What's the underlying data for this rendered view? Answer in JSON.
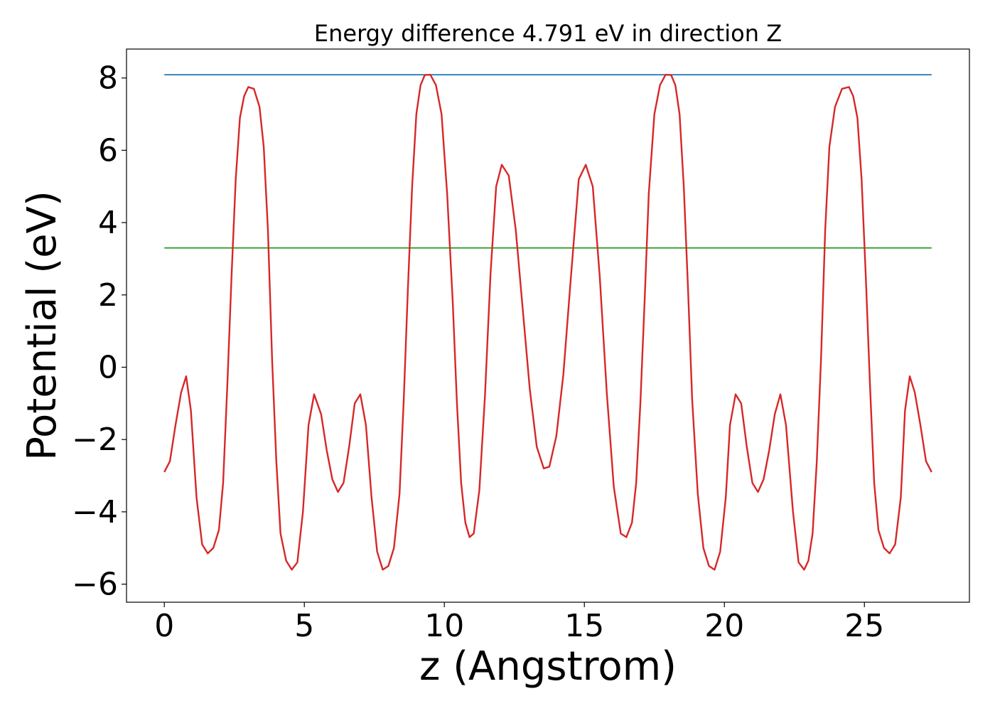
{
  "chart_data": {
    "type": "line",
    "title": "Energy difference 4.791 eV in direction Z",
    "xlabel": "z (Angstrom)",
    "ylabel": "Potential (eV)",
    "xlim": [
      -1.35,
      28.75
    ],
    "ylim": [
      -6.5,
      8.8
    ],
    "xticks": [
      0,
      5,
      10,
      15,
      20,
      25
    ],
    "yticks": [
      -6,
      -4,
      -2,
      0,
      2,
      4,
      6,
      8
    ],
    "xtick_labels": [
      "0",
      "5",
      "10",
      "15",
      "20",
      "25"
    ],
    "ytick_labels": [
      "−6",
      "−4",
      "−2",
      "0",
      "2",
      "4",
      "6",
      "8"
    ],
    "grid": false,
    "series": [
      {
        "color": "#1f77b4",
        "x": [
          0,
          27.4
        ],
        "y": [
          8.09,
          8.09
        ]
      },
      {
        "color": "#2ca02c",
        "x": [
          0,
          27.4
        ],
        "y": [
          3.3,
          3.3
        ]
      },
      {
        "color": "#d62728",
        "x": [
          0,
          0.2,
          0.4,
          0.6,
          0.78,
          0.95,
          1.15,
          1.35,
          1.55,
          1.75,
          1.95,
          2.1,
          2.25,
          2.4,
          2.55,
          2.7,
          2.85,
          3.0,
          3.2,
          3.4,
          3.55,
          3.7,
          3.85,
          4.0,
          4.15,
          4.35,
          4.55,
          4.75,
          4.95,
          5.15,
          5.35,
          5.6,
          5.8,
          6.0,
          6.2,
          6.4,
          6.6,
          6.8,
          7.0,
          7.2,
          7.4,
          7.6,
          7.8,
          8.0,
          8.2,
          8.4,
          8.55,
          8.7,
          8.85,
          9.0,
          9.15,
          9.3,
          9.5,
          9.7,
          9.9,
          10.1,
          10.3,
          10.45,
          10.6,
          10.75,
          10.9,
          11.05,
          11.25,
          11.45,
          11.65,
          11.85,
          12.05,
          12.3,
          12.55,
          12.8,
          13.05,
          13.3,
          13.55,
          13.75,
          14.0,
          14.25,
          14.5,
          14.8,
          15.05,
          15.3,
          15.55,
          15.8,
          16.05,
          16.3,
          16.5,
          16.7,
          16.85,
          17.0,
          17.15,
          17.3,
          17.5,
          17.7,
          17.9,
          18.1,
          18.25,
          18.4,
          18.55,
          18.7,
          18.85,
          19.05,
          19.25,
          19.45,
          19.65,
          19.85,
          20.05,
          20.2,
          20.4,
          20.6,
          20.8,
          21.0,
          21.2,
          21.4,
          21.6,
          21.8,
          22.0,
          22.2,
          22.45,
          22.65,
          22.85,
          23.0,
          23.15,
          23.3,
          23.45,
          23.6,
          23.75,
          23.95,
          24.2,
          24.45,
          24.6,
          24.75,
          24.9,
          25.05,
          25.2,
          25.35,
          25.5,
          25.7,
          25.9,
          26.1,
          26.3,
          26.45,
          26.62,
          26.8,
          27.0,
          27.2,
          27.4
        ],
        "y": [
          -2.9,
          -2.6,
          -1.6,
          -0.7,
          -0.25,
          -1.2,
          -3.6,
          -4.9,
          -5.15,
          -5.0,
          -4.5,
          -3.2,
          -0.5,
          2.5,
          5.2,
          6.9,
          7.5,
          7.75,
          7.7,
          7.2,
          6.1,
          3.8,
          0.2,
          -2.6,
          -4.6,
          -5.35,
          -5.6,
          -5.4,
          -4.0,
          -1.6,
          -0.75,
          -1.3,
          -2.3,
          -3.1,
          -3.45,
          -3.2,
          -2.2,
          -1.0,
          -0.75,
          -1.6,
          -3.6,
          -5.1,
          -5.6,
          -5.5,
          -5.0,
          -3.5,
          -0.9,
          2.2,
          5.0,
          7.0,
          7.8,
          8.08,
          8.09,
          7.8,
          7.0,
          4.8,
          1.8,
          -1.0,
          -3.2,
          -4.3,
          -4.7,
          -4.6,
          -3.4,
          -0.8,
          2.6,
          5.0,
          5.6,
          5.3,
          3.8,
          1.6,
          -0.6,
          -2.2,
          -2.8,
          -2.75,
          -1.9,
          -0.2,
          2.3,
          5.2,
          5.6,
          5.0,
          2.5,
          -0.7,
          -3.3,
          -4.6,
          -4.7,
          -4.3,
          -3.2,
          -1.0,
          1.8,
          4.8,
          7.0,
          7.8,
          8.09,
          8.08,
          7.8,
          7.0,
          5.0,
          2.2,
          -0.9,
          -3.5,
          -5.0,
          -5.5,
          -5.6,
          -5.1,
          -3.6,
          -1.6,
          -0.75,
          -1.0,
          -2.2,
          -3.2,
          -3.45,
          -3.1,
          -2.3,
          -1.3,
          -0.75,
          -1.6,
          -4.0,
          -5.4,
          -5.6,
          -5.35,
          -4.6,
          -2.6,
          0.2,
          3.8,
          6.1,
          7.2,
          7.7,
          7.75,
          7.5,
          6.9,
          5.2,
          2.5,
          -0.5,
          -3.2,
          -4.5,
          -5.0,
          -5.15,
          -4.9,
          -3.6,
          -1.2,
          -0.25,
          -0.7,
          -1.6,
          -2.6,
          -2.9
        ]
      }
    ]
  }
}
